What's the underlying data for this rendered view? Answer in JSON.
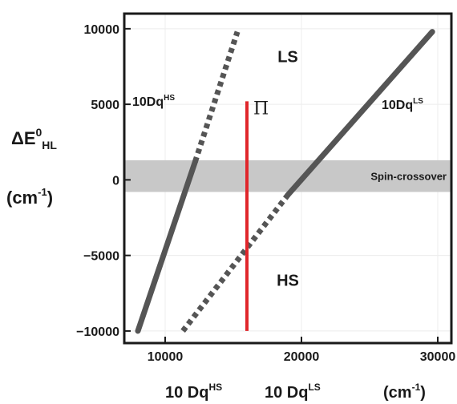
{
  "chart_data": {
    "type": "line",
    "xlim": [
      7000,
      31000
    ],
    "ylim": [
      -10800,
      11000
    ],
    "x_ticks": [
      {
        "value": 10000,
        "label": "10000"
      },
      {
        "value": 20000,
        "label": "20000"
      },
      {
        "value": 30000,
        "label": "30000"
      }
    ],
    "y_ticks": [
      {
        "value": 10000,
        "label": "10000"
      },
      {
        "value": 5000,
        "label": "5000"
      },
      {
        "value": 0,
        "label": "0"
      },
      {
        "value": -5000,
        "label": "−5000"
      },
      {
        "value": -10000,
        "label": "−10000"
      }
    ],
    "ylabel_main": "ΔE",
    "ylabel_sup": "0",
    "ylabel_sub": "HL",
    "ylabel_units": "(cm",
    "ylabel_units_sup": "-1",
    "ylabel_units_close": ")",
    "xlabel_hs": "10 Dq",
    "xlabel_hs_sup": "HS",
    "xlabel_ls": "10 Dq",
    "xlabel_ls_sup": "LS",
    "xlabel_units": "(cm",
    "xlabel_units_sup": "-1",
    "xlabel_units_close": ")",
    "band": {
      "y0": -800,
      "y1": 1300,
      "label": "Spin-crossover",
      "color": "#c8c8c8"
    },
    "series": [
      {
        "label": "10Dq",
        "label_sup": "HS",
        "color": "#555555",
        "solid": [
          [
            8000,
            -10000
          ],
          [
            12200,
            1200
          ]
        ],
        "dotted": [
          [
            12200,
            1200
          ],
          [
            15300,
            9800
          ]
        ]
      },
      {
        "label": "10Dq",
        "label_sup": "LS",
        "color": "#555555",
        "solid": [
          [
            19000,
            -1000
          ],
          [
            29600,
            9800
          ]
        ],
        "dotted": [
          [
            11300,
            -10000
          ],
          [
            19000,
            -1000
          ]
        ]
      }
    ],
    "pi_line": {
      "x": 16000,
      "y0": -10000,
      "y1": 5200,
      "label": "Π",
      "color": "#e0262b"
    },
    "region_labels": [
      {
        "text": "LS",
        "x": 19000,
        "y": 7800
      },
      {
        "text": "HS",
        "x": 19000,
        "y": -7000
      }
    ]
  }
}
